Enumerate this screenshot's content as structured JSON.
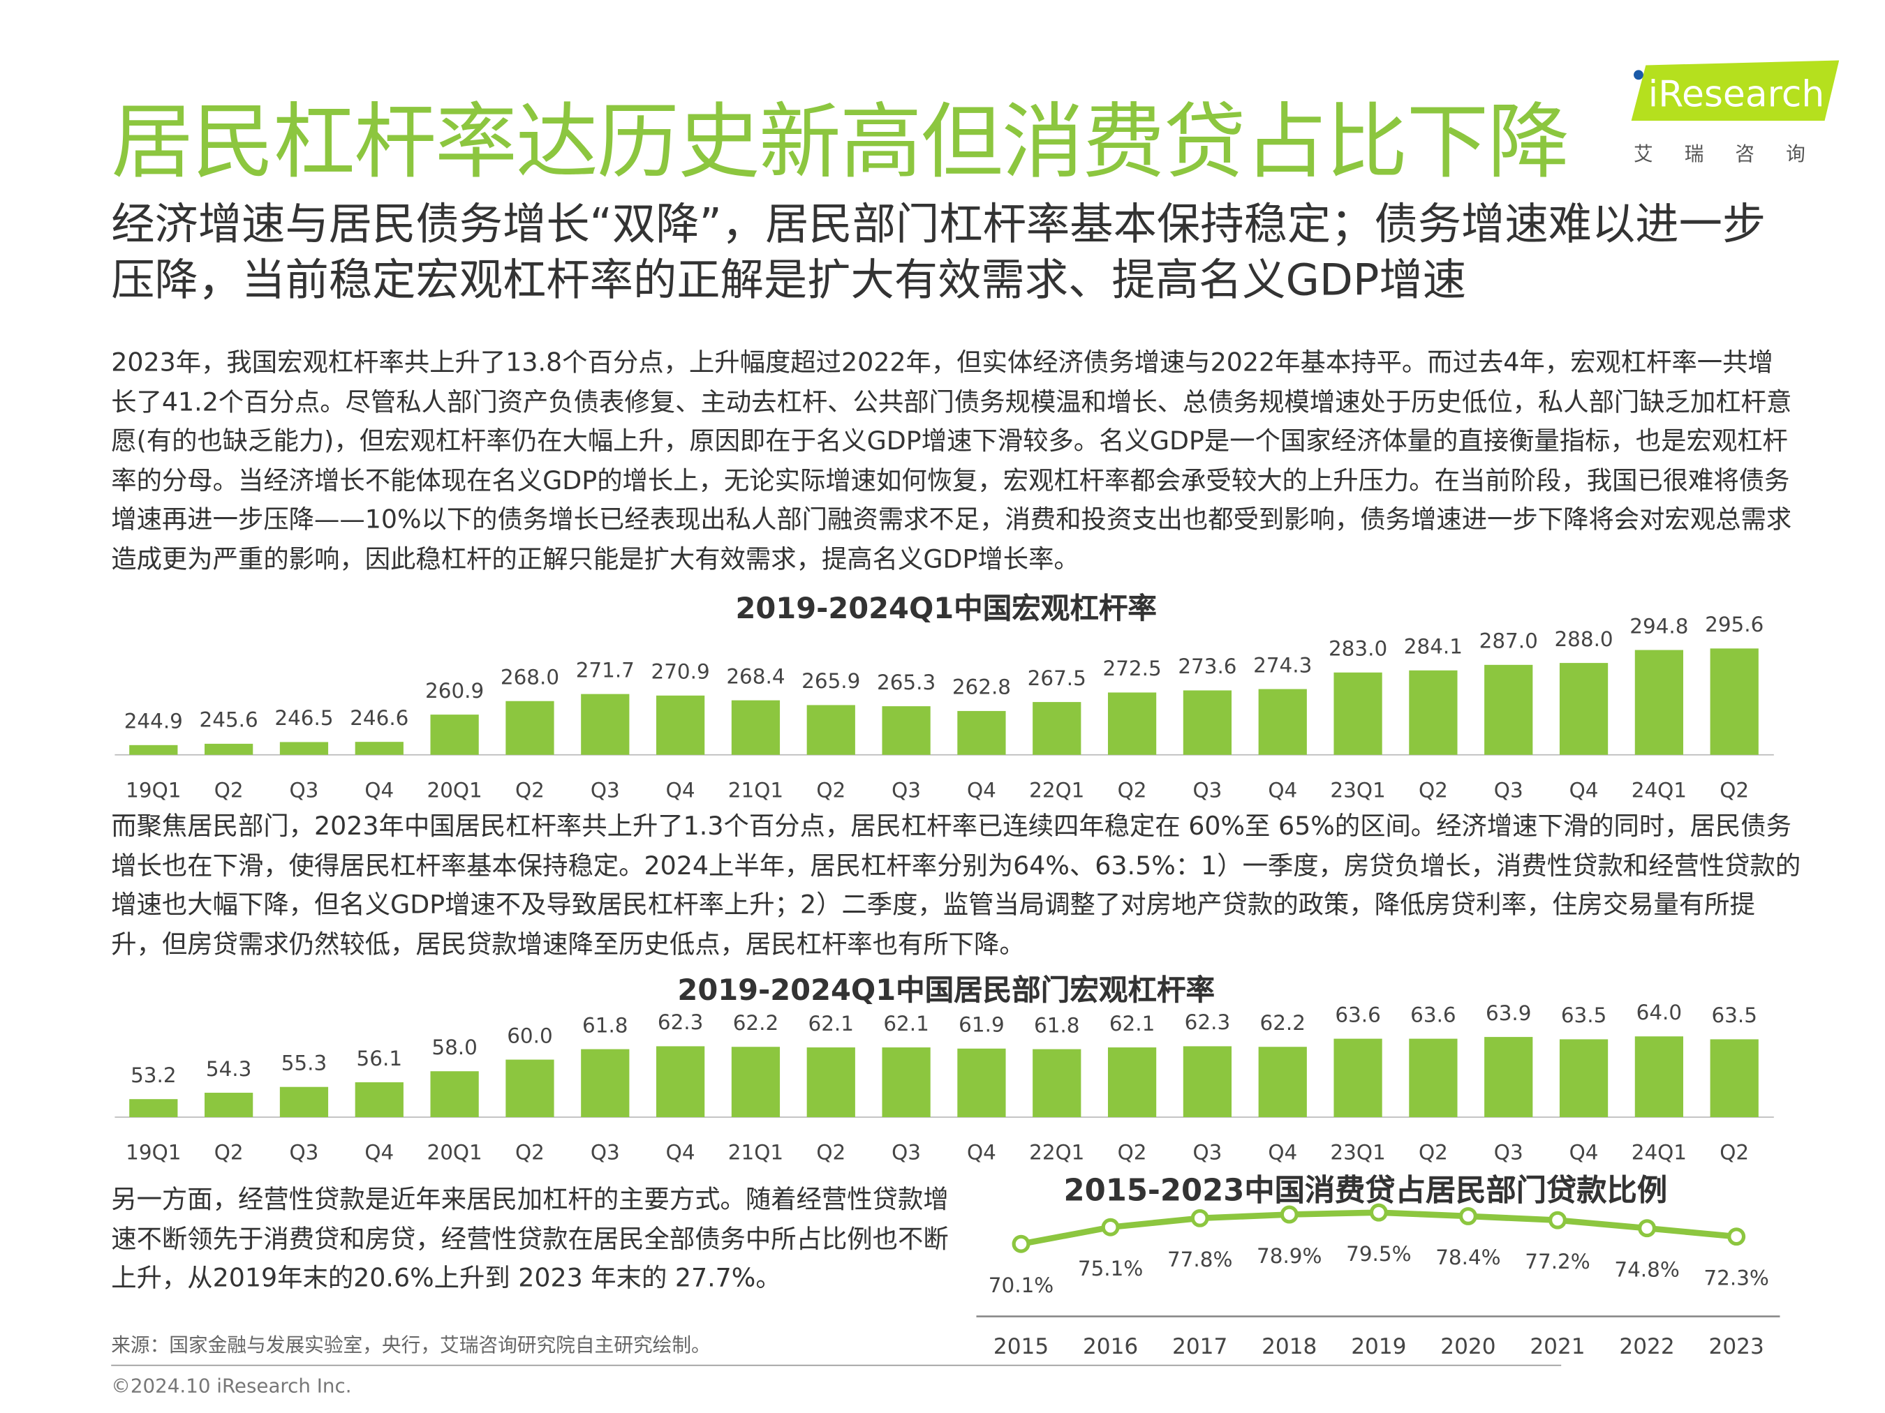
{
  "header": {
    "title": "居民杠杆率达历史新高但消费贷占比下降",
    "logo_text": "iResearch",
    "logo_sub": "艾瑞咨询",
    "subtitle": "经济增速与居民债务增长“双降”，居民部门杠杆率基本保持稳定；债务增速难以进一步压降，当前稳定宏观杠杆率的正解是扩大有效需求、提高名义GDP增速"
  },
  "paragraphs": {
    "p1": "2023年，我国宏观杠杆率共上升了13.8个百分点，上升幅度超过2022年，但实体经济债务增速与2022年基本持平。而过去4年，宏观杠杆率一共增长了41.2个百分点。尽管私人部门资产负债表修复、主动去杠杆、公共部门债务规模温和增长、总债务规模增速处于历史低位，私人部门缺乏加杠杆意愿(有的也缺乏能力)，但宏观杠杆率仍在大幅上升，原因即在于名义GDP增速下滑较多。名义GDP是一个国家经济体量的直接衡量指标，也是宏观杠杆率的分母。当经济增长不能体现在名义GDP的增长上，无论实际增速如何恢复，宏观杠杆率都会承受较大的上升压力。在当前阶段，我国已很难将债务增速再进一步压降——10%以下的债务增长已经表现出私人部门融资需求不足，消费和投资支出也都受到影响，债务增速进一步下降将会对宏观总需求造成更为严重的影响，因此稳杠杆的正解只能是扩大有效需求，提高名义GDP增长率。",
    "p2": "而聚焦居民部门，2023年中国居民杠杆率共上升了1.3个百分点，居民杠杆率已连续四年稳定在 60%至 65%的区间。经济增速下滑的同时，居民债务增长也在下滑，使得居民杠杆率基本保持稳定。2024上半年，居民杠杆率分别为64%、63.5%：1）一季度，房贷负增长，消费性贷款和经营性贷款的增速也大幅下降，但名义GDP增速不及导致居民杠杆率上升；2）二季度，监管当局调整了对房地产贷款的政策，降低房贷利率，住房交易量有所提升，但房贷需求仍然较低，居民贷款增速降至历史低点，居民杠杆率也有所下降。",
    "p3": "另一方面，经营性贷款是近年来居民加杠杆的主要方式。随着经营性贷款增速不断领先于消费贷和房贷，经营性贷款在居民全部债务中所占比例也不断上升，从2019年末的20.6%上升到 2023 年末的 27.7%。"
  },
  "footer": {
    "source": "来源：国家金融与发展实验室，央行，艾瑞咨询研究院自主研究绘制。",
    "copyright": "©2024.10 iResearch Inc."
  },
  "colors": {
    "accent": "#8cc63f",
    "text": "#333333"
  },
  "chart_data": [
    {
      "type": "bar",
      "title": "2019-2024Q1中国宏观杠杆率",
      "categories": [
        "19Q1",
        "Q2",
        "Q3",
        "Q4",
        "20Q1",
        "Q2",
        "Q3",
        "Q4",
        "21Q1",
        "Q2",
        "Q3",
        "Q4",
        "22Q1",
        "Q2",
        "Q3",
        "Q4",
        "23Q1",
        "Q2",
        "Q3",
        "Q4",
        "24Q1",
        "Q2"
      ],
      "values": [
        244.9,
        245.6,
        246.5,
        246.6,
        260.9,
        268.0,
        271.7,
        270.9,
        268.4,
        265.9,
        265.3,
        262.8,
        267.5,
        272.5,
        273.6,
        274.3,
        283.0,
        284.1,
        287.0,
        288.0,
        294.8,
        295.6
      ],
      "labels": [
        "244.9",
        "245.6",
        "246.5",
        "246.6",
        "260.9",
        "268.0",
        "271.7",
        "270.9",
        "268.4",
        "265.9",
        "265.3",
        "262.8",
        "267.5",
        "272.5",
        "273.6",
        "274.3",
        "283.0",
        "284.1",
        "287.0",
        "288.0",
        "294.8",
        "295.6"
      ],
      "color": "#8cc63f"
    },
    {
      "type": "bar",
      "title": "2019-2024Q1中国居民部门宏观杠杆率",
      "categories": [
        "19Q1",
        "Q2",
        "Q3",
        "Q4",
        "20Q1",
        "Q2",
        "Q3",
        "Q4",
        "21Q1",
        "Q2",
        "Q3",
        "Q4",
        "22Q1",
        "Q2",
        "Q3",
        "Q4",
        "23Q1",
        "Q2",
        "Q3",
        "Q4",
        "24Q1",
        "Q2"
      ],
      "values": [
        53.2,
        54.3,
        55.3,
        56.1,
        58.0,
        60.0,
        61.8,
        62.3,
        62.2,
        62.1,
        62.1,
        61.9,
        61.8,
        62.1,
        62.3,
        62.2,
        63.6,
        63.6,
        63.9,
        63.5,
        64.0,
        63.5
      ],
      "labels": [
        "53.2",
        "54.3",
        "55.3",
        "56.1",
        "58.0",
        "60.0",
        "61.8",
        "62.3",
        "62.2",
        "62.1",
        "62.1",
        "61.9",
        "61.8",
        "62.1",
        "62.3",
        "62.2",
        "63.6",
        "63.6",
        "63.9",
        "63.5",
        "64.0",
        "63.5"
      ],
      "color": "#8cc63f"
    },
    {
      "type": "line",
      "title": "2015-2023中国消费贷占居民部门贷款比例",
      "categories": [
        "2015",
        "2016",
        "2017",
        "2018",
        "2019",
        "2020",
        "2021",
        "2022",
        "2023"
      ],
      "values": [
        70.1,
        75.1,
        77.8,
        78.9,
        79.5,
        78.4,
        77.2,
        74.8,
        72.3
      ],
      "labels": [
        "70.1%",
        "75.1%",
        "77.8%",
        "78.9%",
        "79.5%",
        "78.4%",
        "77.2%",
        "74.8%",
        "72.3%"
      ],
      "color": "#8cc63f"
    }
  ]
}
